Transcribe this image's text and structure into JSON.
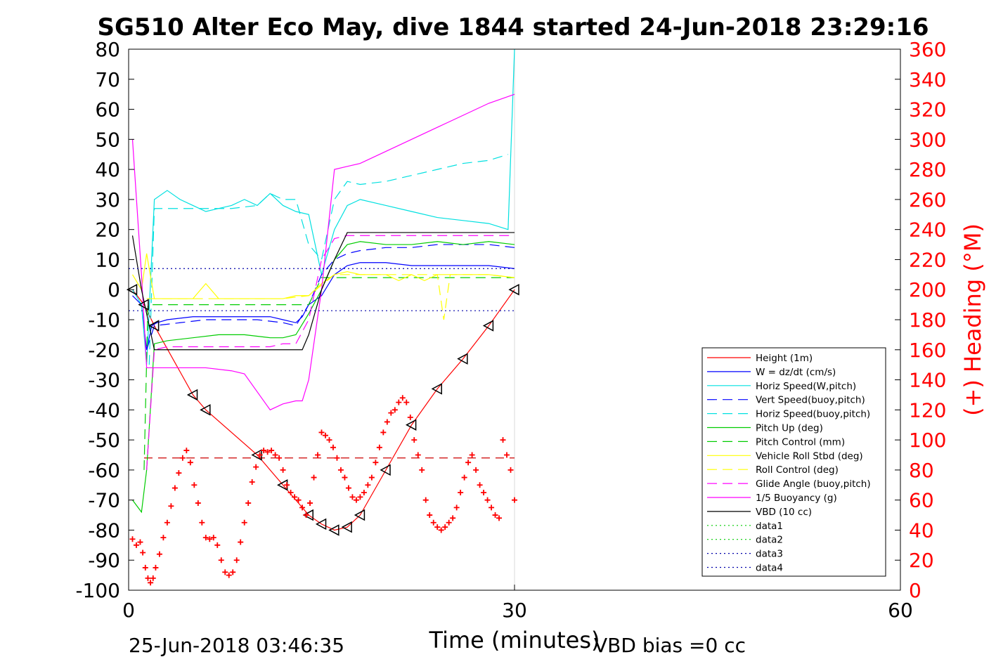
{
  "chart_data": {
    "type": "line",
    "title": "SG510 Alter Eco May, dive 1844 started 24-Jun-2018 23:29:16",
    "xlabel": "Time (minutes)",
    "ylabel_right": "(+) Heading (°M)",
    "xlim": [
      0,
      60
    ],
    "ylim": [
      -100,
      80
    ],
    "ylim_right": [
      0,
      360
    ],
    "x_ticks": [
      "0",
      "30",
      "60"
    ],
    "y_ticks": [
      "80",
      "70",
      "60",
      "50",
      "40",
      "30",
      "20",
      "10",
      "0",
      "-10",
      "-20",
      "-30",
      "-40",
      "-50",
      "-60",
      "-70",
      "-80",
      "-90",
      "-100"
    ],
    "y_right_ticks": [
      "360",
      "340",
      "320",
      "300",
      "280",
      "260",
      "240",
      "220",
      "200",
      "180",
      "160",
      "140",
      "120",
      "100",
      "80",
      "60",
      "40",
      "20",
      "0"
    ],
    "grid": false,
    "legend_position": "lower-right",
    "footer_left": "25-Jun-2018 03:46:35",
    "footer_right": "VBD bias =0 cc",
    "colors": {
      "axis": "#000000",
      "right_axis": "#ff0000"
    },
    "series": [
      {
        "name": "Height (1m)",
        "color": "#ff0000",
        "style": "solid",
        "marker": "triangle-left-black",
        "x": [
          0.3,
          1.2,
          2,
          5,
          6,
          10,
          12,
          14,
          15,
          16,
          17,
          18,
          20,
          22,
          24,
          26,
          28,
          30
        ],
        "y": [
          0,
          -5,
          -12,
          -35,
          -40,
          -55,
          -65,
          -75,
          -78,
          -80,
          -79,
          -75,
          -60,
          -45,
          -33,
          -23,
          -12,
          0
        ]
      },
      {
        "name": "W = dz/dt (cm/s)",
        "color": "#0000ff",
        "style": "solid",
        "x": [
          0.3,
          1,
          1.4,
          1.8,
          2.2,
          3,
          5,
          7,
          9,
          11,
          12,
          13,
          13.5,
          14,
          15,
          16,
          17,
          18,
          20,
          22,
          24,
          26,
          28,
          30
        ],
        "y": [
          -2,
          -5,
          -20,
          -12,
          -11,
          -10,
          -9,
          -9,
          -9,
          -9,
          -10,
          -11,
          -9,
          -5,
          -2,
          5,
          8,
          9,
          9,
          8,
          8,
          8,
          8,
          7
        ]
      },
      {
        "name": "Horiz Speed(W,pitch)",
        "color": "#00e0e0",
        "style": "solid",
        "x": [
          0.3,
          1,
          1.4,
          2,
          3,
          4,
          5,
          6,
          7,
          8,
          9,
          10,
          11,
          12,
          13,
          14,
          15,
          16,
          17,
          18,
          20,
          22,
          24,
          26,
          28,
          29.5,
          30
        ],
        "y": [
          0,
          -5,
          -25,
          30,
          33,
          30,
          28,
          26,
          27,
          28,
          30,
          28,
          32,
          28,
          26,
          25,
          5,
          20,
          28,
          30,
          28,
          26,
          24,
          23,
          22,
          20,
          80
        ]
      },
      {
        "name": "Vert Speed(buoy,pitch)",
        "color": "#0000ff",
        "style": "dash",
        "x": [
          1.4,
          2,
          4,
          6,
          8,
          10,
          12,
          13,
          14,
          15,
          16,
          17,
          18,
          20,
          22,
          24,
          26,
          28,
          30
        ],
        "y": [
          -20,
          -12,
          -11,
          -10,
          -10,
          -10,
          -11,
          -12,
          -5,
          5,
          10,
          12,
          13,
          14,
          14,
          15,
          15,
          15,
          14
        ]
      },
      {
        "name": "Horiz Speed(buoy,pitch)",
        "color": "#00e0e0",
        "style": "dash",
        "x": [
          1.6,
          2,
          4,
          6,
          8,
          10,
          11,
          12,
          13,
          14,
          15,
          16,
          17,
          18,
          20,
          22,
          24,
          26,
          28,
          29.5
        ],
        "y": [
          -25,
          27,
          27,
          27,
          27,
          28,
          32,
          30,
          30,
          15,
          10,
          30,
          36,
          35,
          36,
          38,
          40,
          42,
          43,
          45
        ]
      },
      {
        "name": "Pitch Up (deg)",
        "color": "#00cc00",
        "style": "solid",
        "x": [
          0.3,
          1,
          1.4,
          2,
          3,
          5,
          7,
          9,
          11,
          12,
          13,
          14,
          15,
          16,
          17,
          18,
          20,
          22,
          24,
          26,
          28,
          30
        ],
        "y": [
          -70,
          -74,
          -60,
          -18,
          -17,
          -16,
          -15,
          -15,
          -16,
          -16,
          -15,
          -8,
          0,
          10,
          15,
          16,
          15,
          15,
          16,
          15,
          16,
          15
        ]
      },
      {
        "name": "Pitch Control (mm)",
        "color": "#00cc00",
        "style": "dash",
        "x": [
          1.2,
          1.5,
          3,
          6,
          9,
          12,
          13.5,
          14,
          15,
          16,
          18,
          20,
          24,
          28,
          30
        ],
        "y": [
          -60,
          -5,
          -5,
          -5,
          -5,
          -5,
          -5,
          -5,
          4,
          4,
          4,
          4,
          4,
          4,
          4
        ]
      },
      {
        "name": "Vehicle Roll Stbd (deg)",
        "color": "#ffff00",
        "style": "solid",
        "x": [
          0.3,
          1,
          1.4,
          2,
          3,
          5,
          6,
          7,
          9,
          11,
          12,
          13,
          14,
          15,
          16,
          17,
          18,
          20,
          21,
          22,
          23,
          24,
          26,
          28,
          30
        ],
        "y": [
          5,
          0,
          12,
          -3,
          -3,
          -3,
          2,
          -3,
          -3,
          -3,
          -3,
          -2,
          -2,
          2,
          5,
          6,
          5,
          5,
          3,
          5,
          3,
          5,
          5,
          5,
          4
        ]
      },
      {
        "name": "Roll Control (deg)",
        "color": "#ffff00",
        "style": "dash",
        "x": [
          1.4,
          3,
          6,
          9,
          12,
          14,
          16,
          20,
          24,
          24.5,
          25,
          28,
          30
        ],
        "y": [
          -3,
          -3,
          -3,
          -3,
          -3,
          -2,
          5,
          5,
          5,
          -10,
          5,
          5,
          4
        ]
      },
      {
        "name": "Glide Angle (buoy,pitch)",
        "color": "#ff00ff",
        "style": "dash",
        "x": [
          1.4,
          2,
          3,
          5,
          8,
          11,
          12,
          13,
          14,
          15,
          16,
          17,
          18,
          20,
          22,
          24,
          26,
          28,
          30
        ],
        "y": [
          -60,
          -20,
          -19,
          -19,
          -19,
          -19,
          -18,
          -18,
          -10,
          10,
          17,
          18,
          18,
          18,
          18,
          18,
          18,
          18,
          18
        ]
      },
      {
        "name": "1/5 Buoyancy (g)",
        "color": "#ff00ff",
        "style": "solid",
        "x": [
          0.3,
          1,
          1.4,
          2,
          4,
          6,
          8,
          9,
          10,
          11,
          12,
          13,
          13.5,
          14,
          15,
          16,
          17,
          18,
          20,
          22,
          24,
          26,
          28,
          30
        ],
        "y": [
          50,
          5,
          -26,
          -26,
          -26,
          -26,
          -27,
          -28,
          -34,
          -40,
          -38,
          -37,
          -37,
          -30,
          0,
          40,
          41,
          42,
          46,
          50,
          54,
          58,
          62,
          65
        ]
      },
      {
        "name": "VBD (10 cc)",
        "color": "#000000",
        "style": "solid",
        "x": [
          0.3,
          1,
          2,
          3,
          6,
          9,
          12,
          13.5,
          14,
          15,
          16,
          17,
          18,
          20,
          24,
          28,
          30
        ],
        "y": [
          18,
          0,
          -20,
          -20,
          -20,
          -20,
          -20,
          -20,
          -15,
          0,
          10,
          19,
          19,
          19,
          19,
          19,
          19
        ]
      },
      {
        "name": "data1",
        "color": "#00cc00",
        "style": "dot",
        "x": [],
        "y": []
      },
      {
        "name": "data2",
        "color": "#00cc00",
        "style": "dot",
        "x": [],
        "y": []
      },
      {
        "name": "data3",
        "color": "#0000aa",
        "style": "dot",
        "x": [
          0,
          30
        ],
        "y": [
          7,
          7
        ]
      },
      {
        "name": "data4",
        "color": "#0000aa",
        "style": "dot",
        "x": [
          0,
          30
        ],
        "y": [
          -7,
          -7
        ]
      }
    ],
    "extra_lines": [
      {
        "color": "#cc0000",
        "style": "longdash",
        "x": [
          1.2,
          30
        ],
        "y": [
          -56,
          -56
        ]
      }
    ],
    "heading": {
      "color": "#ff0000",
      "marker": "+",
      "x": [
        0.3,
        0.6,
        0.9,
        1.1,
        1.3,
        1.5,
        1.7,
        1.9,
        2.1,
        2.4,
        2.7,
        3,
        3.3,
        3.6,
        3.9,
        4.2,
        4.5,
        4.8,
        5.1,
        5.4,
        5.7,
        6,
        6.3,
        6.6,
        6.9,
        7.2,
        7.5,
        7.8,
        8.1,
        8.4,
        8.7,
        9,
        9.3,
        9.6,
        9.9,
        10.2,
        10.5,
        10.8,
        11.1,
        11.4,
        11.7,
        12,
        12.3,
        12.6,
        12.9,
        13.2,
        13.5,
        13.8,
        14.1,
        14.4,
        14.7,
        15,
        15.3,
        15.6,
        15.9,
        16.2,
        16.5,
        16.8,
        17.1,
        17.4,
        17.7,
        18,
        18.3,
        18.6,
        18.9,
        19.2,
        19.5,
        19.8,
        20.1,
        20.4,
        20.7,
        21,
        21.3,
        21.6,
        21.9,
        22.2,
        22.5,
        22.8,
        23.1,
        23.4,
        23.7,
        24,
        24.3,
        24.6,
        24.9,
        25.2,
        25.5,
        25.8,
        26.1,
        26.4,
        26.7,
        27,
        27.3,
        27.6,
        27.9,
        28.2,
        28.5,
        28.8,
        29.1,
        29.4,
        29.7,
        30
      ],
      "y": [
        34,
        30,
        32,
        25,
        15,
        8,
        5,
        8,
        15,
        24,
        35,
        45,
        56,
        68,
        78,
        88,
        93,
        85,
        70,
        58,
        45,
        35,
        34,
        35,
        30,
        20,
        12,
        10,
        12,
        20,
        32,
        45,
        58,
        72,
        82,
        90,
        93,
        92,
        93,
        90,
        88,
        80,
        70,
        65,
        62,
        60,
        55,
        50,
        58,
        75,
        90,
        105,
        103,
        100,
        95,
        88,
        80,
        75,
        68,
        62,
        60,
        62,
        65,
        70,
        75,
        85,
        95,
        105,
        112,
        118,
        120,
        125,
        128,
        125,
        115,
        100,
        90,
        80,
        60,
        50,
        45,
        42,
        40,
        42,
        45,
        48,
        55,
        65,
        75,
        85,
        90,
        80,
        70,
        65,
        60,
        55,
        50,
        48,
        100,
        90,
        80,
        60
      ]
    }
  }
}
